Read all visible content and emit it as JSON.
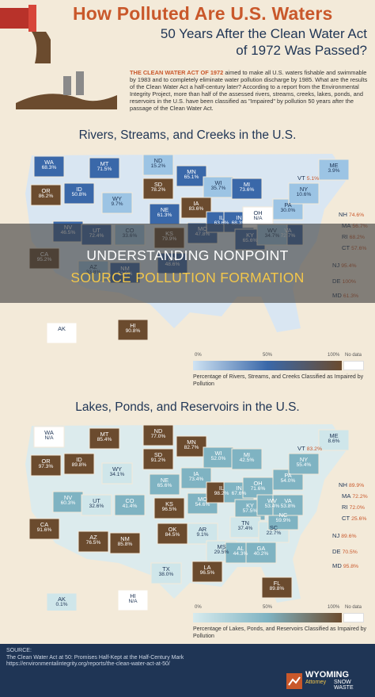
{
  "header": {
    "title": "How Polluted Are U.S. Waters",
    "subtitle1": "50 Years After the Clean Water Act",
    "subtitle2": "of 1972 Was Passed?"
  },
  "intro": {
    "lead": "THE CLEAN WATER ACT OF 1972",
    "body": " aimed to make all U.S. waters fishable and swimmable by 1983 and to completely eliminate water pollution discharge by 1985. What are the results of the Clean Water Act a half-century later? According to a report from the Environmental Integrity Project, more than half of the assessed rivers, streams, creeks, lakes, ponds, and reservoirs in the U.S. have been classified as \"Impaired\" by pollution 50 years after the passage of the Clean Water Act."
  },
  "rivers": {
    "title": "Rivers, Streams, and Creeks in the U.S.",
    "states": [
      {
        "abbr": "WA",
        "value": "68.3%"
      },
      {
        "abbr": "OR",
        "value": "86.2%"
      },
      {
        "abbr": "CA",
        "value": "95.2%"
      },
      {
        "abbr": "ID",
        "value": "50.8%"
      },
      {
        "abbr": "NV",
        "value": "46.5%"
      },
      {
        "abbr": "MT",
        "value": "71.5%"
      },
      {
        "abbr": "WY",
        "value": "9.7%"
      },
      {
        "abbr": "UT",
        "value": "72.4%"
      },
      {
        "abbr": "AZ",
        "value": "33.8%"
      },
      {
        "abbr": "CO",
        "value": "33.6%"
      },
      {
        "abbr": "NM",
        "value": "51.6%"
      },
      {
        "abbr": "ND",
        "value": "15.2%"
      },
      {
        "abbr": "SD",
        "value": "78.2%"
      },
      {
        "abbr": "NE",
        "value": "61.3%"
      },
      {
        "abbr": "KS",
        "value": "79.9%"
      },
      {
        "abbr": "OK",
        "value": "48.6%"
      },
      {
        "abbr": "MN",
        "value": "65.1%"
      },
      {
        "abbr": "IA",
        "value": "83.6%"
      },
      {
        "abbr": "MO",
        "value": "47.8%"
      },
      {
        "abbr": "WI",
        "value": "35.7%"
      },
      {
        "abbr": "IL",
        "value": "63.6%"
      },
      {
        "abbr": "MI",
        "value": "73.6%"
      },
      {
        "abbr": "IN",
        "value": "68.3%"
      },
      {
        "abbr": "OH",
        "value": "N/A"
      },
      {
        "abbr": "KY",
        "value": "65.6%"
      },
      {
        "abbr": "PA",
        "value": "30.0%"
      },
      {
        "abbr": "NY",
        "value": "10.6%"
      },
      {
        "abbr": "VA",
        "value": "72.7%"
      },
      {
        "abbr": "WV",
        "value": "34.7%"
      },
      {
        "abbr": "ME",
        "value": "3.9%"
      },
      {
        "abbr": "HI",
        "value": "90.8%"
      },
      {
        "abbr": "AK",
        "value": ""
      }
    ],
    "side": [
      {
        "abbr": "VT",
        "value": "5.1%"
      },
      {
        "abbr": "NH",
        "value": "74.6%"
      },
      {
        "abbr": "MA",
        "value": "56.7%"
      },
      {
        "abbr": "RI",
        "value": "68.2%"
      },
      {
        "abbr": "CT",
        "value": "57.6%"
      },
      {
        "abbr": "NJ",
        "value": "95.4%"
      },
      {
        "abbr": "DE",
        "value": "100%"
      },
      {
        "abbr": "MD",
        "value": "61.3%"
      }
    ],
    "legend": {
      "min": "0%",
      "mid": "50%",
      "max": "100%",
      "nodata": "No data",
      "caption": "Percentage of Rivers, Streams, and Creeks Classified as Impaired by Pollution"
    }
  },
  "lakes": {
    "title": "Lakes, Ponds, and Reservoirs in the U.S.",
    "states": [
      {
        "abbr": "WA",
        "value": "N/A"
      },
      {
        "abbr": "OR",
        "value": "97.3%"
      },
      {
        "abbr": "CA",
        "value": "91.6%"
      },
      {
        "abbr": "ID",
        "value": "89.8%"
      },
      {
        "abbr": "NV",
        "value": "60.3%"
      },
      {
        "abbr": "MT",
        "value": "85.4%"
      },
      {
        "abbr": "WY",
        "value": "34.1%"
      },
      {
        "abbr": "UT",
        "value": "32.6%"
      },
      {
        "abbr": "AZ",
        "value": "76.5%"
      },
      {
        "abbr": "CO",
        "value": "41.4%"
      },
      {
        "abbr": "NM",
        "value": "85.8%"
      },
      {
        "abbr": "ND",
        "value": "77.0%"
      },
      {
        "abbr": "SD",
        "value": "91.2%"
      },
      {
        "abbr": "NE",
        "value": "65.6%"
      },
      {
        "abbr": "KS",
        "value": "96.5%"
      },
      {
        "abbr": "OK",
        "value": "84.5%"
      },
      {
        "abbr": "TX",
        "value": "38.0%"
      },
      {
        "abbr": "MN",
        "value": "82.7%"
      },
      {
        "abbr": "IA",
        "value": "73.4%"
      },
      {
        "abbr": "MO",
        "value": "54.6%"
      },
      {
        "abbr": "AR",
        "value": "9.1%"
      },
      {
        "abbr": "LA",
        "value": "96.5%"
      },
      {
        "abbr": "WI",
        "value": "52.0%"
      },
      {
        "abbr": "IL",
        "value": "98.2%"
      },
      {
        "abbr": "MI",
        "value": "42.5%"
      },
      {
        "abbr": "IN",
        "value": "67.6%"
      },
      {
        "abbr": "OH",
        "value": "71.6%"
      },
      {
        "abbr": "KY",
        "value": "57.5%"
      },
      {
        "abbr": "TN",
        "value": "37.4%"
      },
      {
        "abbr": "MS",
        "value": "29.5%"
      },
      {
        "abbr": "AL",
        "value": "44.3%"
      },
      {
        "abbr": "GA",
        "value": "40.2%"
      },
      {
        "abbr": "FL",
        "value": "89.8%"
      },
      {
        "abbr": "SC",
        "value": "22.7%"
      },
      {
        "abbr": "NC",
        "value": "59.9%"
      },
      {
        "abbr": "WV",
        "value": "53.4%"
      },
      {
        "abbr": "VA",
        "value": "53.8%"
      },
      {
        "abbr": "PA",
        "value": "54.0%"
      },
      {
        "abbr": "NY",
        "value": "55.4%"
      },
      {
        "abbr": "ME",
        "value": "8.6%"
      },
      {
        "abbr": "AK",
        "value": "0.1%"
      },
      {
        "abbr": "HI",
        "value": "N/A"
      }
    ],
    "side": [
      {
        "abbr": "VT",
        "value": "83.2%"
      },
      {
        "abbr": "NH",
        "value": "89.9%"
      },
      {
        "abbr": "MA",
        "value": "72.2%"
      },
      {
        "abbr": "RI",
        "value": "72.0%"
      },
      {
        "abbr": "CT",
        "value": "25.6%"
      },
      {
        "abbr": "NJ",
        "value": "89.6%"
      },
      {
        "abbr": "DE",
        "value": "70.5%"
      },
      {
        "abbr": "MD",
        "value": "95.8%"
      }
    ],
    "legend": {
      "min": "0%",
      "mid": "50%",
      "max": "100%",
      "nodata": "No data",
      "caption": "Percentage of Lakes, Ponds, and Reservoirs Classified as Impaired by Pollution"
    }
  },
  "overlay": {
    "line1": "UNDERSTANDING NONPOINT",
    "line2": "SOURCE POLLUTION FORMATION"
  },
  "footer": {
    "label": "SOURCE:",
    "line1": "The Clean Water Act at 50: Promises Half-Kept at the Half-Century Mark",
    "line2": "https://environmentalintegrity.org/reports/the-clean-water-act-at-50/",
    "logo_name": "WYOMING",
    "logo_sub": "Attorney",
    "logo_tag": "SNOW WASTE"
  },
  "colors": {
    "dark": "#6b4b2e",
    "mid": "#3a68a9",
    "light": "#9cc4e4",
    "bg": "#f3ead9",
    "accent": "#c9582b",
    "navy": "#1f3555",
    "lake": "#7fb3c2"
  }
}
